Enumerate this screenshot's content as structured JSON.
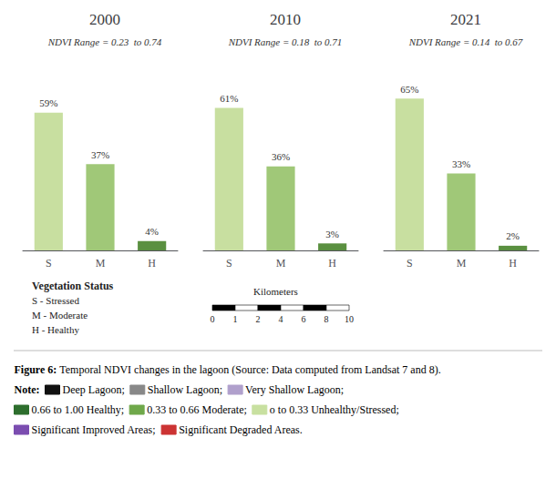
{
  "chart_data": [
    {
      "type": "bar",
      "title": "2000",
      "subtitle": "NDVI Range = 0.23  to 0.74",
      "categories": [
        "S",
        "M",
        "H"
      ],
      "values": [
        59,
        37,
        4
      ],
      "value_labels": [
        "59%",
        "37%",
        "4%"
      ],
      "colors": [
        "#c8dfa0",
        "#a0c878",
        "#5a9040"
      ],
      "ylim": [
        0,
        78
      ],
      "tick_labels": "x",
      "grid": false,
      "data_labels": true,
      "annotations": [
        "Vegetation Status",
        "S - Stressed",
        "M - Moderate",
        "H - Healthy"
      ],
      "caption": [
        "Figure 6:",
        "Temporal NDVI changes in the lagoon (Source: Data computed from Landsat 7 and 8).",
        "Note:"
      ],
      "note_items": [
        {
          "label": "Deep Lagoon;",
          "color": "#111111"
        },
        {
          "label": "Shallow Lagoon;",
          "color": "#888888"
        },
        {
          "label": "Very Shallow Lagoon;",
          "color": "#b0a0cc"
        },
        {
          "label": "0.66 to 1.00 Healthy;",
          "color": "#2d6e2d"
        },
        {
          "label": "0.33 to 0.66 Moderate;",
          "color": "#6fa84a"
        },
        {
          "label": "o to 0.33 Unhealthy/Stressed;",
          "color": "#c8e0a0"
        },
        {
          "label": "Significant Improved Areas;",
          "color": "#7b4db0"
        },
        {
          "label": "Significant Degraded Areas.",
          "color": "#cc3333"
        }
      ]
    },
    {
      "type": "bar",
      "title": "2010",
      "subtitle": "NDVI Range = 0.18  to 0.71",
      "categories": [
        "S",
        "M",
        "H"
      ],
      "values": [
        61,
        36,
        3
      ],
      "value_labels": [
        "61%",
        "36%",
        "3%"
      ],
      "colors": [
        "#c8dfa0",
        "#a0c878",
        "#5a9040"
      ],
      "ylim": [
        0,
        78
      ],
      "tick_labels": "x",
      "grid": false,
      "data_labels": true,
      "scale_labels": [
        "0",
        "1",
        "2",
        "4",
        "6",
        "8",
        "10"
      ],
      "scale_label": "Kilometers"
    },
    {
      "type": "bar",
      "title": "2021",
      "subtitle": "NDVI Range = 0.14  to 0.67",
      "categories": [
        "S",
        "M",
        "H"
      ],
      "values": [
        65,
        33,
        2
      ],
      "value_labels": [
        "65%",
        "33%",
        "2%"
      ],
      "colors": [
        "#c8dfa0",
        "#a0c878",
        "#5a9040"
      ],
      "ylim": [
        0,
        78
      ],
      "tick_labels": "x",
      "grid": false,
      "data_labels": true
    }
  ]
}
